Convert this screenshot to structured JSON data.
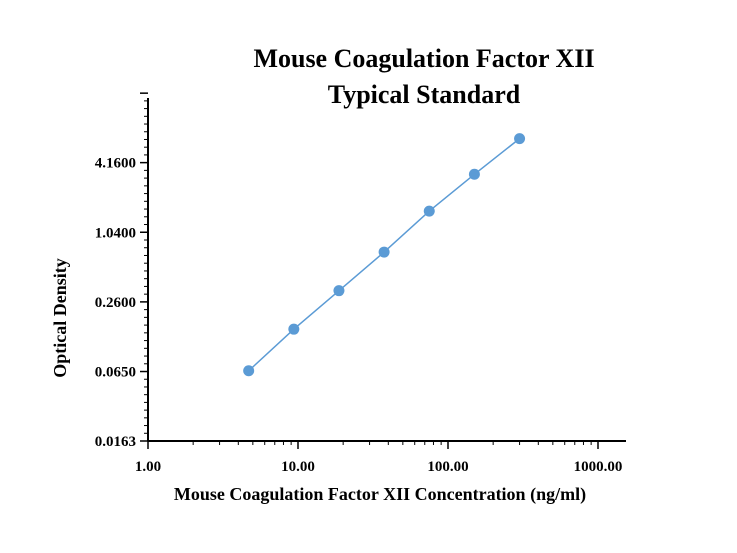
{
  "chart_data": {
    "type": "line",
    "title": "Mouse Coagulation Factor XII",
    "subtitle": "Typical Standard",
    "xlabel": "Mouse Coagulation Factor XII Concentration (ng/ml)",
    "ylabel": "Optical Density",
    "x_scale": "log",
    "y_scale": "log",
    "xlim": [
      1,
      1000
    ],
    "ylim": [
      0.0163,
      16.64
    ],
    "x_ticks": [
      "1.00",
      "10.00",
      "100.00",
      "1000.00"
    ],
    "y_ticks": [
      "0.0163",
      "0.0650",
      "0.2600",
      "1.0400",
      "4.1600"
    ],
    "grid": false,
    "legend": "none",
    "series": [
      {
        "x": [
          4.69,
          9.38,
          18.75,
          37.5,
          75,
          150,
          300
        ],
        "y": [
          0.066,
          0.151,
          0.325,
          0.701,
          1.584,
          3.299,
          6.706
        ],
        "color": "#5b9bd5"
      }
    ]
  }
}
